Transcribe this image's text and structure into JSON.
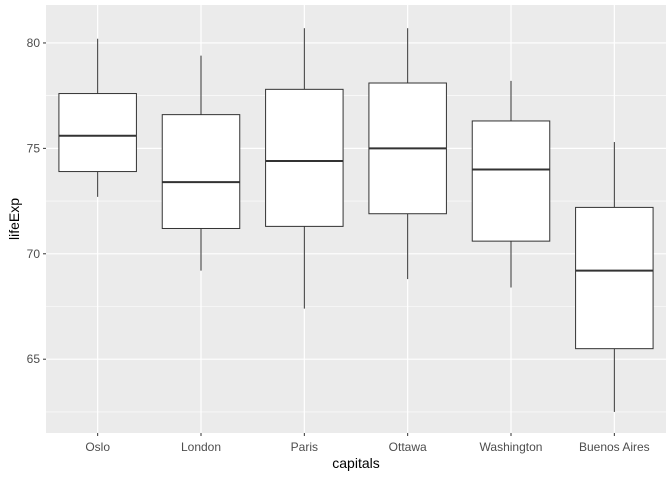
{
  "chart_data": {
    "type": "boxplot",
    "title": "",
    "xlabel": "capitals",
    "ylabel": "lifeExp",
    "ylim": [
      61.5,
      81.8
    ],
    "y_major_ticks": [
      65,
      70,
      75,
      80
    ],
    "y_minor_ticks": [
      62.5,
      67.5,
      72.5,
      77.5
    ],
    "y_tick_labels": [
      "65",
      "70",
      "75",
      "80"
    ],
    "grid": true,
    "legend": "none",
    "colors": {
      "panel_background": "#EBEBEB",
      "grid_major": "#FFFFFF",
      "box_fill": "#FFFFFF",
      "box_stroke": "#333333",
      "tick_label": "#4D4D4D"
    },
    "categories": [
      "Oslo",
      "London",
      "Paris",
      "Ottawa",
      "Washington",
      "Buenos Aires"
    ],
    "boxes": [
      {
        "category": "Oslo",
        "whisker_low": 72.7,
        "q1": 73.9,
        "median": 75.6,
        "q3": 77.6,
        "whisker_high": 80.2
      },
      {
        "category": "London",
        "whisker_low": 69.2,
        "q1": 71.2,
        "median": 73.4,
        "q3": 76.6,
        "whisker_high": 79.4
      },
      {
        "category": "Paris",
        "whisker_low": 67.4,
        "q1": 71.3,
        "median": 74.4,
        "q3": 77.8,
        "whisker_high": 80.7
      },
      {
        "category": "Ottawa",
        "whisker_low": 68.8,
        "q1": 71.9,
        "median": 75.0,
        "q3": 78.1,
        "whisker_high": 80.7
      },
      {
        "category": "Washington",
        "whisker_low": 68.4,
        "q1": 70.6,
        "median": 74.0,
        "q3": 76.3,
        "whisker_high": 78.2
      },
      {
        "category": "Buenos Aires",
        "whisker_low": 62.5,
        "q1": 65.5,
        "median": 69.2,
        "q3": 72.2,
        "whisker_high": 75.3
      }
    ]
  }
}
